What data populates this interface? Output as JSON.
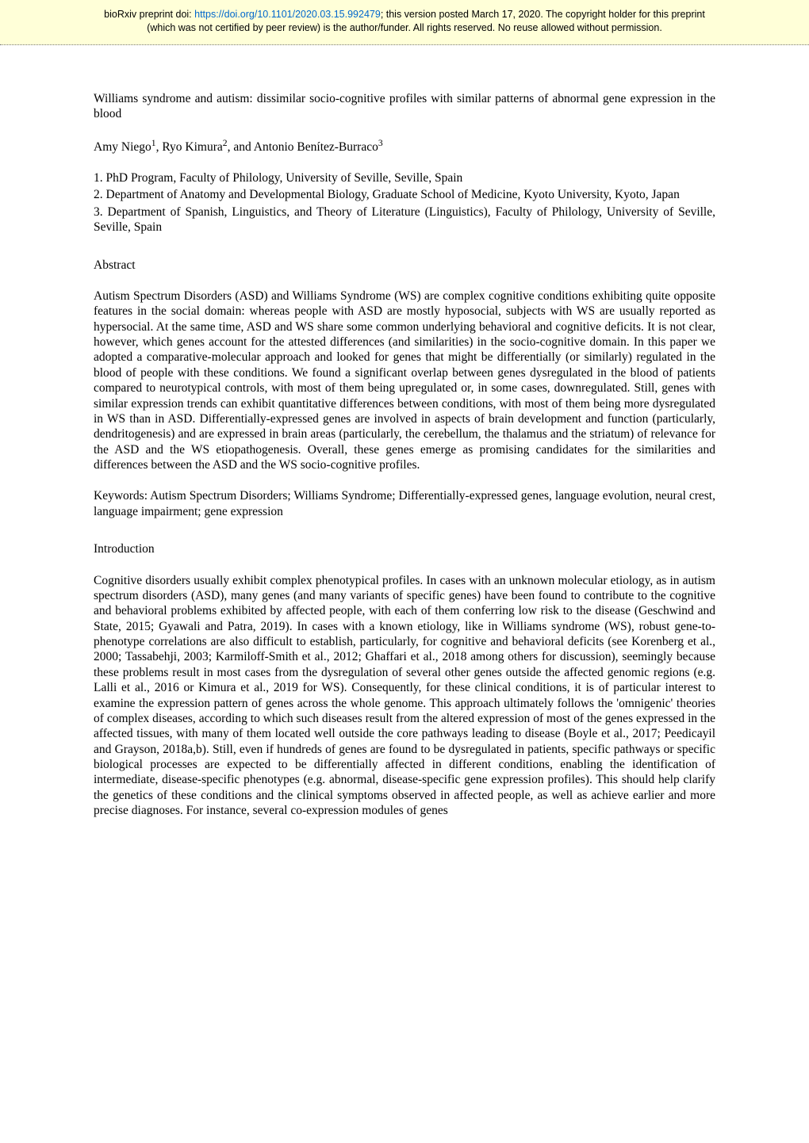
{
  "banner": {
    "prefix": "bioRxiv preprint doi: ",
    "doi_url": "https://doi.org/10.1101/2020.03.15.992479",
    "line1_suffix": "; this version posted March 17, 2020. The copyright holder for this preprint",
    "line2": "(which was not certified by peer review) is the author/funder. All rights reserved. No reuse allowed without permission."
  },
  "title": "Williams syndrome and autism: dissimilar socio-cognitive profiles with similar patterns of abnormal gene expression in the blood",
  "authors": {
    "a1": "Amy Niego",
    "s1": "1",
    "sep1": ", ",
    "a2": "Ryo Kimura",
    "s2": "2",
    "sep2": ", and ",
    "a3": "Antonio Benítez-Burraco",
    "s3": "3"
  },
  "affiliations": {
    "l1": "1. PhD Program, Faculty of Philology, University of Seville, Seville, Spain",
    "l2": "2. Department of Anatomy and Developmental Biology, Graduate School of Medicine, Kyoto University, Kyoto, Japan",
    "l3": "3. Department of Spanish, Linguistics, and Theory of Literature (Linguistics), Faculty of Philology, University of Seville, Seville, Spain"
  },
  "abstract": {
    "heading": "Abstract",
    "p1": "Autism Spectrum Disorders (ASD) and Williams Syndrome (WS) are complex cognitive conditions exhibiting quite opposite features in the social domain: whereas people with ASD are mostly hyposocial, subjects with WS are usually reported as hypersocial. At the same time, ASD and WS share some common underlying behavioral and cognitive deficits. It is not clear, however, which genes account for the attested differences (and similarities) in the socio-cognitive domain. In this paper we adopted a comparative-molecular approach and looked for genes that might be differentially (or similarly) regulated in the blood of people with these conditions. We found a significant overlap between genes dysregulated in the blood of patients compared to neurotypical controls, with most of them being upregulated or, in some cases, downregulated. Still, genes with similar expression trends can exhibit quantitative differences between conditions, with most of them being more dysregulated in WS than in ASD. Differentially-expressed genes are involved in aspects of brain development and function (particularly, dendritogenesis) and are expressed in brain areas (particularly, the cerebellum, the thalamus and the striatum) of relevance for the ASD and the WS etiopathogenesis. Overall, these genes emerge as promising candidates for the similarities and differences between the ASD and the WS socio-cognitive profiles.",
    "keywords": "Keywords: Autism Spectrum Disorders; Williams Syndrome; Differentially-expressed genes, language evolution, neural crest, language impairment; gene expression"
  },
  "introduction": {
    "heading": "Introduction",
    "p1": "Cognitive disorders usually exhibit complex phenotypical profiles. In cases with an unknown molecular etiology, as in autism spectrum disorders (ASD), many genes (and many variants of specific genes) have been found to contribute to the cognitive and behavioral problems exhibited by affected people, with each of them conferring low risk to the disease (Geschwind and State, 2015; Gyawali and Patra, 2019). In cases with a known etiology, like in Williams syndrome (WS), robust gene-to-phenotype correlations are also difficult to establish, particularly, for cognitive and behavioral deficits (see Korenberg et al., 2000; Tassabehji, 2003; Karmiloff-Smith et al., 2012; Ghaffari et al., 2018 among others for discussion), seemingly because these problems result in most cases from the dysregulation of several other genes outside the affected genomic regions (e.g. Lalli et al., 2016 or Kimura et al., 2019 for WS). Consequently, for these clinical conditions, it is of particular interest to examine the expression pattern of genes across the whole genome. This approach ultimately follows the 'omnigenic' theories of complex diseases, according to which such diseases result from the altered expression of most of the genes expressed in the affected tissues, with many of them located well outside the core pathways leading to disease (Boyle et al., 2017; Peedicayil and Grayson, 2018a,b). Still, even if hundreds of genes are found to be dysregulated in patients, specific pathways or specific biological processes are expected to be differentially affected in different conditions, enabling the identification of intermediate, disease-specific phenotypes (e.g. abnormal, disease-specific gene expression profiles). This should help clarify the genetics of these conditions and the clinical symptoms observed in affected people, as well as achieve earlier and more precise diagnoses. For instance, several co-expression modules of genes"
  }
}
